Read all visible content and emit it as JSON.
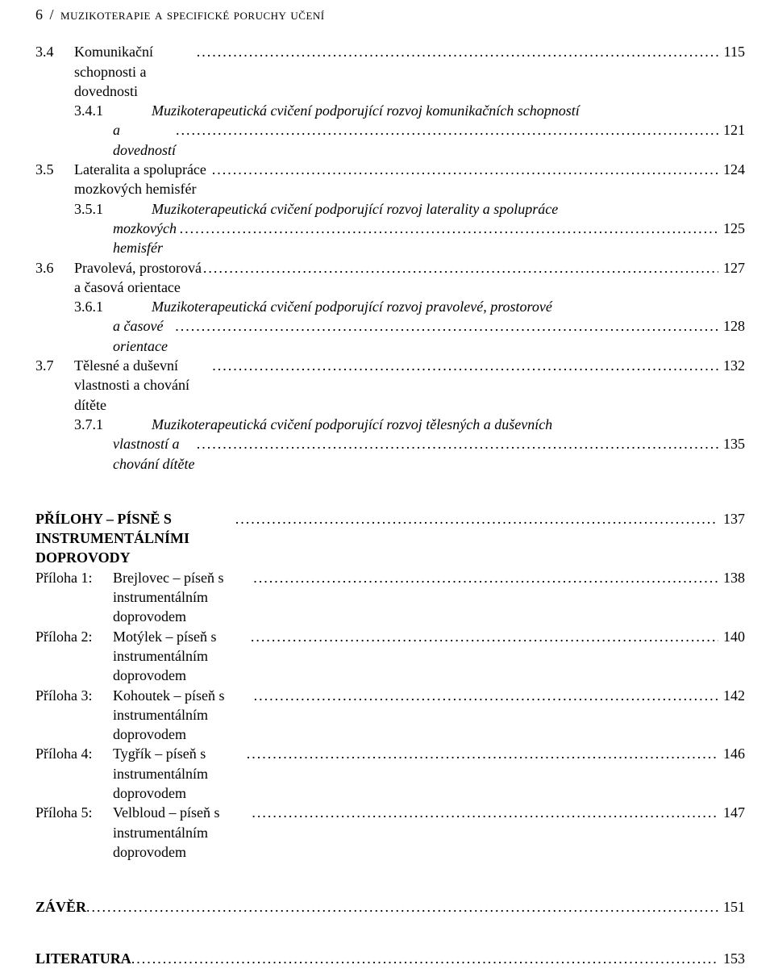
{
  "header": {
    "page_number": "6",
    "separator": "/",
    "running_title": "muzikoterapie a specifické poruchy učení"
  },
  "toc": {
    "section_3_4": {
      "num": "3.4",
      "title": "Komunikační schopnosti a dovednosti",
      "page": "115"
    },
    "section_3_4_1": {
      "num": "3.4.1",
      "title_line1": "Muzikoterapeutická cvičení podporující rozvoj komunikačních schopností",
      "title_line2": "a dovedností",
      "page": "121"
    },
    "section_3_5": {
      "num": "3.5",
      "title": "Lateralita a spolupráce mozkových hemisfér",
      "page": "124"
    },
    "section_3_5_1": {
      "num": "3.5.1",
      "title_line1": "Muzikoterapeutická cvičení podporující rozvoj laterality a spolupráce",
      "title_line2": "mozkových hemisfér",
      "page": "125"
    },
    "section_3_6": {
      "num": "3.6",
      "title": "Pravolevá, prostorová a časová orientace",
      "page": "127"
    },
    "section_3_6_1": {
      "num": "3.6.1",
      "title_line1": "Muzikoterapeutická cvičení podporující rozvoj pravolevé, prostorové",
      "title_line2": "a časové orientace",
      "page": "128"
    },
    "section_3_7": {
      "num": "3.7",
      "title": "Tělesné a duševní vlastnosti a chování dítěte",
      "page": "132"
    },
    "section_3_7_1": {
      "num": "3.7.1",
      "title_line1": "Muzikoterapeutická cvičení podporující rozvoj tělesných a duševních",
      "title_line2": "vlastností a chování dítěte",
      "page": "135"
    }
  },
  "prilohy": {
    "heading": "PŘÍLOHY – PÍSNĚ S INSTRUMENTÁLNÍMI DOPROVODY",
    "heading_page": "137",
    "items": [
      {
        "label": "Příloha 1:",
        "title": "Brejlovec – píseň s instrumentálním doprovodem",
        "page": "138"
      },
      {
        "label": "Příloha 2:",
        "title": "Motýlek – píseň s instrumentálním doprovodem",
        "page": "140"
      },
      {
        "label": "Příloha 3:",
        "title": "Kohoutek – píseň s instrumentálním doprovodem",
        "page": "142"
      },
      {
        "label": "Příloha 4:",
        "title": "Tygřík – píseň s instrumentálním doprovodem",
        "page": "146"
      },
      {
        "label": "Příloha 5:",
        "title": "Velbloud – píseň s instrumentálním doprovodem",
        "page": "147"
      }
    ]
  },
  "zaver": {
    "label": "ZÁVĚR",
    "page": "151"
  },
  "literatura": {
    "label": "LITERATURA",
    "page": "153"
  }
}
